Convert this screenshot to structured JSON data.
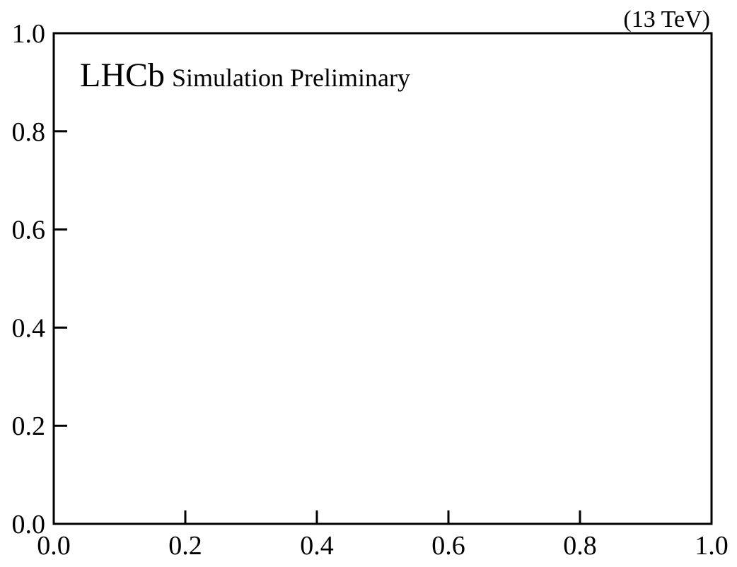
{
  "chart_data": {
    "type": "scatter",
    "title": "",
    "xlabel": "",
    "ylabel": "",
    "xlim": [
      0.0,
      1.0
    ],
    "ylim": [
      0.0,
      1.0
    ],
    "x_ticks": [
      "0.0",
      "0.2",
      "0.4",
      "0.6",
      "0.8",
      "1.0"
    ],
    "y_ticks": [
      "0.0",
      "0.2",
      "0.4",
      "0.6",
      "0.8",
      "1.0"
    ],
    "series": [],
    "grid": false,
    "legend": "none",
    "annotations": {
      "experiment": "LHCb",
      "status": "Simulation Preliminary",
      "energy": "(13 TeV)"
    }
  }
}
